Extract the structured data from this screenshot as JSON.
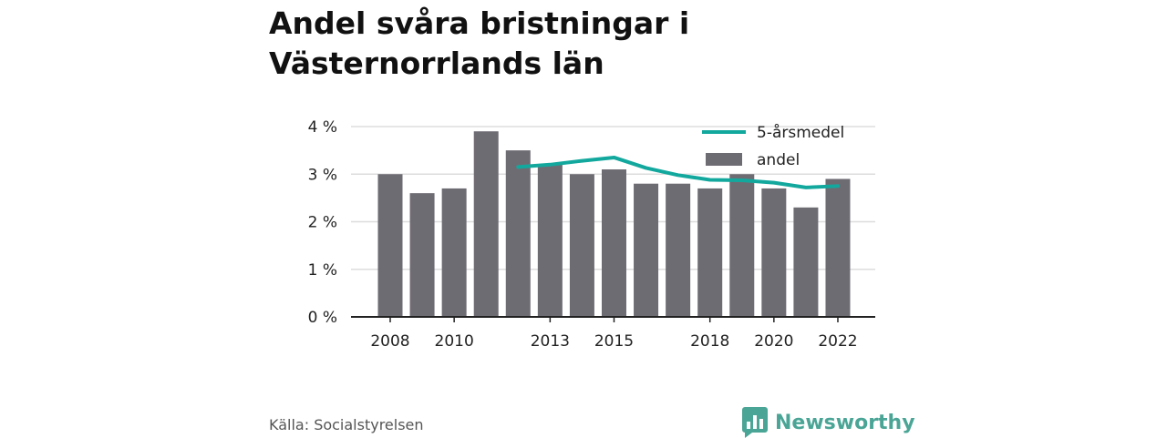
{
  "title": "Andel svåra bristningar i Västernorrlands län",
  "source": "Källa: Socialstyrelsen",
  "brand": {
    "name": "Newsworthy",
    "icon": "bar-chart-badge-icon",
    "color": "#4aa596"
  },
  "colors": {
    "bar": "#6e6c73",
    "line": "#13a89e",
    "grid": "#dddddd",
    "axis": "#222222"
  },
  "chart_data": {
    "type": "bar",
    "x": [
      2008,
      2009,
      2010,
      2011,
      2012,
      2013,
      2014,
      2015,
      2016,
      2017,
      2018,
      2019,
      2020,
      2021,
      2022
    ],
    "x_tick_labels": [
      "2008",
      "2010",
      "2013",
      "2015",
      "2018",
      "2020",
      "2022"
    ],
    "x_tick_values": [
      2008,
      2010,
      2013,
      2015,
      2018,
      2020,
      2022
    ],
    "y_tick_labels": [
      "0 %",
      "1 %",
      "2 %",
      "3 %",
      "4 %"
    ],
    "y_tick_values": [
      0,
      1,
      2,
      3,
      4
    ],
    "ylim": [
      0,
      4
    ],
    "grid": true,
    "legend_position": "top-right",
    "series": [
      {
        "name": "5-årsmedel",
        "type": "line",
        "x": [
          2012,
          2013,
          2014,
          2015,
          2016,
          2017,
          2018,
          2019,
          2020,
          2021,
          2022
        ],
        "values": [
          3.15,
          3.2,
          3.28,
          3.35,
          3.13,
          2.98,
          2.88,
          2.87,
          2.82,
          2.72,
          2.75
        ]
      },
      {
        "name": "andel",
        "type": "bar",
        "values": [
          3.0,
          2.6,
          2.7,
          3.9,
          3.5,
          3.2,
          3.0,
          3.1,
          2.8,
          2.8,
          2.7,
          3.0,
          2.7,
          2.3,
          2.9
        ]
      }
    ]
  }
}
